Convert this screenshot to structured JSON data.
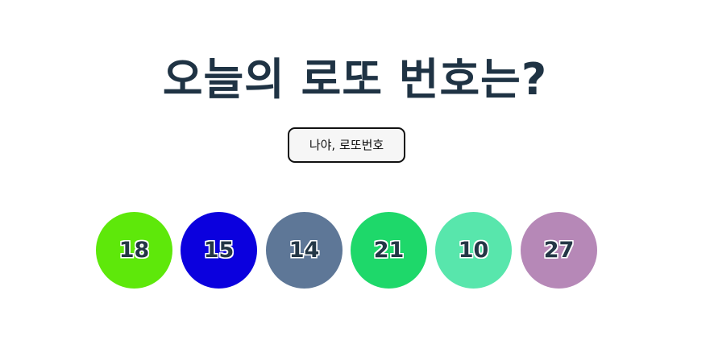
{
  "header": {
    "title": "오늘의 로또 번호는?"
  },
  "controls": {
    "draw_button_label": "나야, 로또번호"
  },
  "balls": [
    {
      "number": "18",
      "color": "#5ee80a"
    },
    {
      "number": "15",
      "color": "#0b00de"
    },
    {
      "number": "14",
      "color": "#5e7797"
    },
    {
      "number": "21",
      "color": "#1ed86a"
    },
    {
      "number": "10",
      "color": "#58e6ac"
    },
    {
      "number": "27",
      "color": "#b688b7"
    }
  ]
}
